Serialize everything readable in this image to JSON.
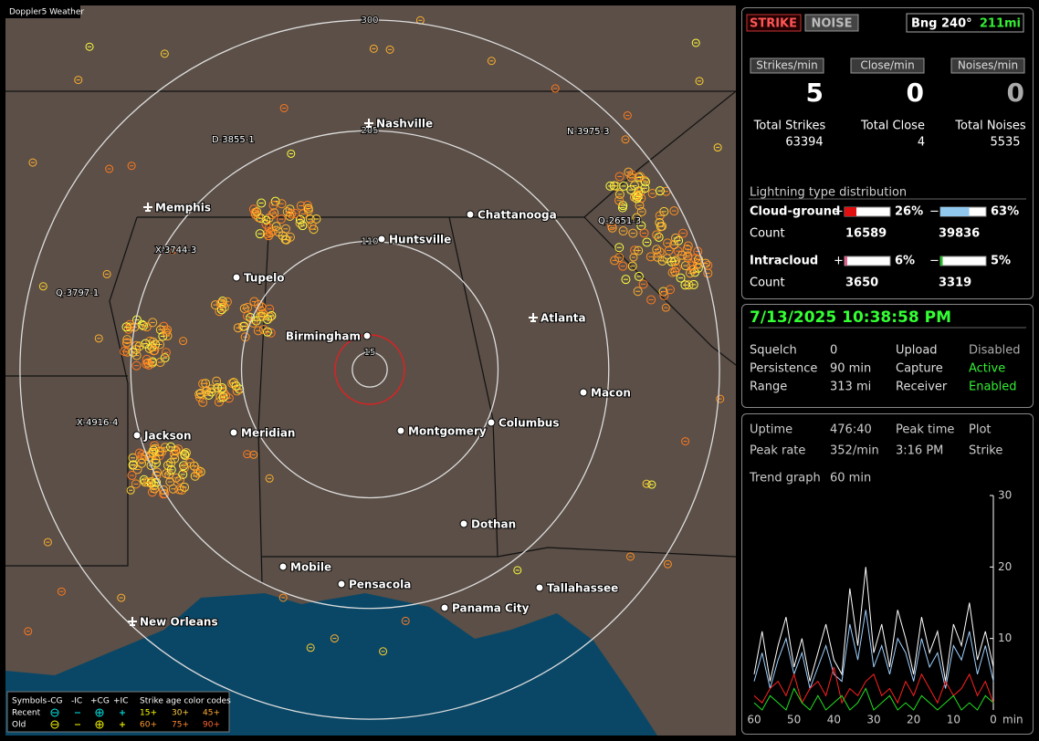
{
  "header": {
    "title": "Doppler5 Weather"
  },
  "map": {
    "range_rings": [
      300,
      205,
      110,
      15
    ],
    "cities": [
      "Nashville",
      "Memphis",
      "Chattanooga",
      "Huntsville",
      "Tupelo",
      "Atlanta",
      "Birmingham",
      "Macon",
      "Jackson",
      "Meridian",
      "Montgomery",
      "Columbus",
      "Dothan",
      "Mobile",
      "Pensacola",
      "Tallahassee",
      "Panama City",
      "New Orleans"
    ],
    "detectors": [
      "D-3855-1",
      "N-3975-3",
      "Q-2651-3",
      "X-3744-3",
      "Q-3797-1",
      "X-4916-4"
    ]
  },
  "legend": {
    "symbols": "Symbols",
    "types": [
      "-CG",
      "-IC",
      "+CG",
      "+IC"
    ],
    "age_title": "Strike age color codes",
    "rows": [
      {
        "label": "Recent",
        "ages": [
          "15+",
          "30+",
          "45+"
        ]
      },
      {
        "label": "Old",
        "ages": [
          "60+",
          "75+",
          "90+"
        ]
      }
    ]
  },
  "panel": {
    "mode_buttons": [
      "STRIKE",
      "NOISE"
    ],
    "bearing": "Bng 240°",
    "distance": "211mi",
    "rates": [
      {
        "label": "Strikes/min",
        "value": "5"
      },
      {
        "label": "Close/min",
        "value": "0"
      },
      {
        "label": "Noises/min",
        "value": "0"
      }
    ],
    "totals": [
      {
        "label": "Total Strikes",
        "value": "63394"
      },
      {
        "label": "Total Close",
        "value": "4"
      },
      {
        "label": "Total Noises",
        "value": "5535"
      }
    ],
    "distribution": {
      "title": "Lightning type distribution",
      "count_label": "Count",
      "rows": [
        {
          "type": "Cloud-ground",
          "pos": {
            "sign": "+",
            "value": 26,
            "label": "26%"
          },
          "neg": {
            "sign": "−",
            "value": 63,
            "label": "63%"
          },
          "counts": [
            "16589",
            "39836"
          ]
        },
        {
          "type": "Intracloud",
          "pos": {
            "sign": "+",
            "value": 6,
            "label": "6%"
          },
          "neg": {
            "sign": "−",
            "value": 5,
            "label": "5%"
          },
          "counts": [
            "3650",
            "3319"
          ]
        }
      ]
    },
    "datetime": "7/13/2025 10:38:58 PM",
    "settings": [
      [
        "Squelch",
        "0",
        "Upload",
        "Disabled"
      ],
      [
        "Persistence",
        "90 min",
        "Capture",
        "Active"
      ],
      [
        "Range",
        "313 mi",
        "Receiver",
        "Enabled"
      ]
    ],
    "stats": [
      [
        "Uptime",
        "476:40",
        "Peak time",
        "Plot"
      ],
      [
        "Peak rate",
        "352/min",
        "3:16 PM",
        "Strike"
      ]
    ],
    "trend": {
      "label": "Trend graph",
      "window": "60 min"
    }
  },
  "chart_data": {
    "type": "line",
    "x_unit": "min",
    "x": [
      60,
      58,
      56,
      54,
      52,
      50,
      48,
      46,
      44,
      42,
      40,
      38,
      36,
      34,
      32,
      30,
      28,
      26,
      24,
      22,
      20,
      18,
      16,
      14,
      12,
      10,
      8,
      6,
      4,
      2,
      0
    ],
    "xlim": [
      60,
      0
    ],
    "xticks": [
      60,
      50,
      40,
      30,
      20,
      10,
      0
    ],
    "ylim": [
      0,
      30
    ],
    "yticks": [
      10,
      20,
      30
    ],
    "series": [
      {
        "color": "#ffffff",
        "values": [
          5,
          11,
          4,
          9,
          13,
          6,
          10,
          4,
          8,
          12,
          7,
          5,
          17,
          9,
          20,
          8,
          12,
          6,
          14,
          10,
          5,
          13,
          8,
          11,
          4,
          12,
          9,
          15,
          7,
          11,
          6
        ]
      },
      {
        "color": "#9fd0ff",
        "values": [
          4,
          8,
          3,
          7,
          10,
          5,
          8,
          3,
          6,
          9,
          5,
          4,
          12,
          7,
          14,
          6,
          9,
          5,
          10,
          8,
          4,
          10,
          6,
          8,
          3,
          9,
          7,
          11,
          5,
          9,
          4
        ]
      },
      {
        "color": "#ff2020",
        "values": [
          2,
          1,
          3,
          4,
          2,
          5,
          1,
          3,
          4,
          2,
          6,
          1,
          3,
          2,
          4,
          5,
          2,
          3,
          1,
          4,
          2,
          5,
          3,
          1,
          4,
          2,
          3,
          5,
          2,
          4,
          1
        ]
      },
      {
        "color": "#20e020",
        "values": [
          1,
          0,
          2,
          1,
          0,
          3,
          1,
          0,
          2,
          0,
          1,
          2,
          0,
          1,
          3,
          0,
          1,
          2,
          0,
          1,
          0,
          2,
          1,
          0,
          1,
          2,
          0,
          1,
          0,
          2,
          1
        ]
      }
    ]
  }
}
